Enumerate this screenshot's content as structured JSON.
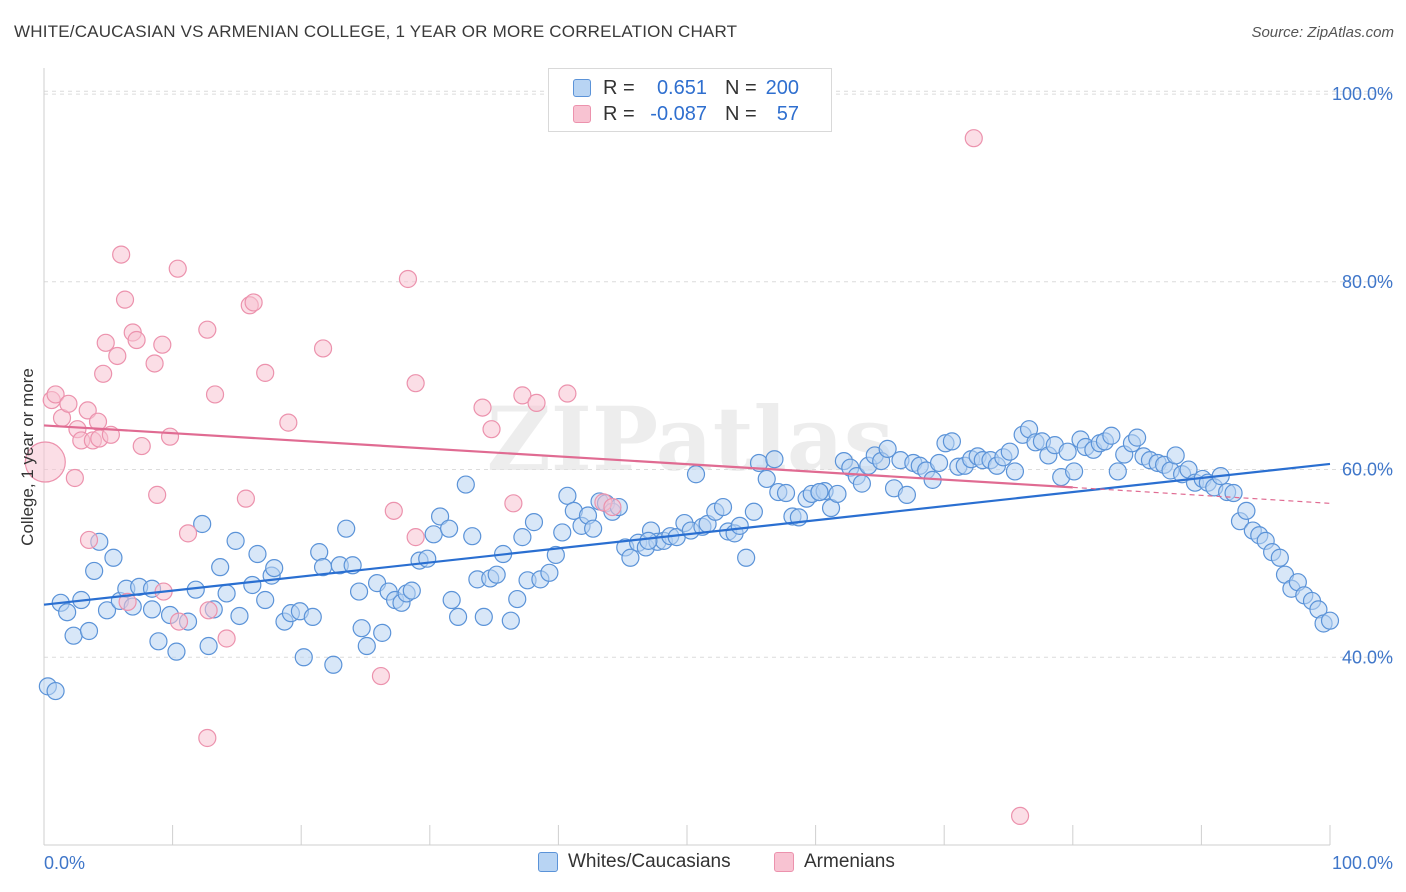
{
  "title": "WHITE/CAUCASIAN VS ARMENIAN COLLEGE, 1 YEAR OR MORE CORRELATION CHART",
  "source": "Source: ZipAtlas.com",
  "watermark": "ZIPatlas",
  "legend": {
    "rows": [
      {
        "r_label": "R =",
        "r_value": "0.651",
        "n_label": "N =",
        "n_value": "200"
      },
      {
        "r_label": "R =",
        "r_value": "-0.087",
        "n_label": "N =",
        "n_value": "57"
      }
    ]
  },
  "bottom_legend": [
    "Whites/Caucasians",
    "Armenians"
  ],
  "colors": {
    "blue_fill": "#b8d4f3",
    "blue_stroke": "#5b93d8",
    "blue_line": "#2a6fd1",
    "pink_fill": "#f8c3d2",
    "pink_stroke": "#ec92ad",
    "pink_line": "#e06b92",
    "axis_text": "#3f76c9",
    "grid": "#dcdcdc"
  },
  "chart_data": {
    "type": "scatter",
    "xlabel": "",
    "ylabel": "College, 1 year or more",
    "xlim": [
      0,
      100
    ],
    "ylim": [
      20,
      101.5
    ],
    "x_tick_labels": [
      "0.0%",
      "100.0%"
    ],
    "y_ticks": [
      40,
      60,
      80,
      100
    ],
    "y_tick_labels": [
      "40.0%",
      "60.0%",
      "80.0%",
      "100.0%"
    ],
    "grid": "horizontal dashed",
    "series": [
      {
        "name": "Whites/Caucasians",
        "trend": {
          "x": [
            0,
            100
          ],
          "y": [
            45.6,
            60.6
          ]
        },
        "points": [
          [
            0.3,
            36.9
          ],
          [
            0.9,
            36.4
          ],
          [
            1.3,
            45.8
          ],
          [
            1.8,
            44.8
          ],
          [
            2.3,
            42.3
          ],
          [
            2.9,
            46.1
          ],
          [
            3.5,
            42.8
          ],
          [
            3.9,
            49.2
          ],
          [
            4.3,
            52.3
          ],
          [
            4.9,
            45.0
          ],
          [
            5.4,
            50.6
          ],
          [
            5.9,
            46.0
          ],
          [
            6.4,
            47.3
          ],
          [
            6.9,
            45.4
          ],
          [
            7.4,
            47.5
          ],
          [
            8.4,
            47.3
          ],
          [
            8.4,
            45.1
          ],
          [
            8.9,
            41.7
          ],
          [
            9.8,
            44.5
          ],
          [
            10.3,
            40.6
          ],
          [
            11.2,
            43.8
          ],
          [
            11.8,
            47.2
          ],
          [
            12.3,
            54.2
          ],
          [
            12.8,
            41.2
          ],
          [
            13.2,
            45.1
          ],
          [
            13.7,
            49.6
          ],
          [
            14.2,
            46.8
          ],
          [
            14.9,
            52.4
          ],
          [
            15.2,
            44.4
          ],
          [
            16.2,
            47.7
          ],
          [
            16.6,
            51.0
          ],
          [
            17.2,
            46.1
          ],
          [
            17.7,
            48.7
          ],
          [
            17.9,
            49.5
          ],
          [
            18.7,
            43.8
          ],
          [
            19.2,
            44.7
          ],
          [
            19.9,
            44.9
          ],
          [
            20.2,
            40.0
          ],
          [
            20.9,
            44.3
          ],
          [
            21.4,
            51.2
          ],
          [
            21.7,
            49.6
          ],
          [
            22.5,
            39.2
          ],
          [
            23.0,
            49.8
          ],
          [
            23.5,
            53.7
          ],
          [
            24.0,
            49.8
          ],
          [
            24.5,
            47.0
          ],
          [
            24.7,
            43.1
          ],
          [
            25.1,
            41.2
          ],
          [
            25.9,
            47.9
          ],
          [
            26.3,
            42.6
          ],
          [
            26.8,
            47.0
          ],
          [
            27.3,
            46.1
          ],
          [
            27.8,
            45.8
          ],
          [
            28.2,
            46.8
          ],
          [
            28.6,
            47.1
          ],
          [
            29.2,
            50.3
          ],
          [
            29.8,
            50.5
          ],
          [
            30.3,
            53.1
          ],
          [
            30.8,
            55.0
          ],
          [
            31.5,
            53.7
          ],
          [
            31.7,
            46.1
          ],
          [
            32.2,
            44.3
          ],
          [
            32.8,
            58.4
          ],
          [
            33.3,
            52.9
          ],
          [
            33.7,
            48.3
          ],
          [
            34.2,
            44.3
          ],
          [
            34.7,
            48.4
          ],
          [
            35.2,
            48.8
          ],
          [
            35.7,
            51.0
          ],
          [
            36.3,
            43.9
          ],
          [
            36.8,
            46.2
          ],
          [
            37.2,
            52.8
          ],
          [
            37.6,
            48.2
          ],
          [
            38.1,
            54.4
          ],
          [
            38.6,
            48.3
          ],
          [
            39.3,
            49.0
          ],
          [
            39.8,
            50.9
          ],
          [
            40.3,
            53.3
          ],
          [
            40.7,
            57.2
          ],
          [
            41.2,
            55.6
          ],
          [
            41.8,
            54.0
          ],
          [
            42.3,
            55.1
          ],
          [
            42.7,
            53.7
          ],
          [
            43.2,
            56.6
          ],
          [
            43.7,
            56.4
          ],
          [
            44.2,
            55.5
          ],
          [
            44.7,
            56.0
          ],
          [
            45.2,
            51.7
          ],
          [
            45.6,
            50.6
          ],
          [
            46.2,
            52.2
          ],
          [
            46.8,
            51.7
          ],
          [
            47.2,
            53.5
          ],
          [
            47.7,
            52.3
          ],
          [
            48.2,
            52.4
          ],
          [
            48.7,
            52.9
          ],
          [
            49.2,
            52.8
          ],
          [
            49.8,
            54.3
          ],
          [
            50.3,
            53.5
          ],
          [
            50.7,
            59.5
          ],
          [
            51.2,
            53.9
          ],
          [
            51.6,
            54.2
          ],
          [
            52.2,
            55.5
          ],
          [
            52.8,
            56.0
          ],
          [
            53.2,
            53.4
          ],
          [
            53.7,
            53.2
          ],
          [
            54.1,
            54.0
          ],
          [
            54.6,
            50.6
          ],
          [
            55.2,
            55.5
          ],
          [
            55.6,
            60.7
          ],
          [
            56.2,
            59.0
          ],
          [
            56.8,
            61.1
          ],
          [
            57.1,
            57.6
          ],
          [
            57.7,
            57.5
          ],
          [
            58.2,
            55.0
          ],
          [
            58.7,
            54.9
          ],
          [
            59.3,
            56.9
          ],
          [
            59.7,
            57.4
          ],
          [
            60.3,
            57.6
          ],
          [
            60.7,
            57.7
          ],
          [
            61.2,
            55.9
          ],
          [
            61.7,
            57.4
          ],
          [
            62.2,
            60.9
          ],
          [
            62.7,
            60.2
          ],
          [
            63.2,
            59.3
          ],
          [
            63.6,
            58.5
          ],
          [
            64.1,
            60.4
          ],
          [
            64.6,
            61.5
          ],
          [
            65.1,
            60.9
          ],
          [
            65.6,
            62.2
          ],
          [
            66.1,
            58.0
          ],
          [
            66.6,
            61.0
          ],
          [
            67.1,
            57.3
          ],
          [
            67.6,
            60.7
          ],
          [
            68.1,
            60.4
          ],
          [
            68.6,
            59.9
          ],
          [
            69.1,
            58.9
          ],
          [
            69.6,
            60.7
          ],
          [
            70.1,
            62.8
          ],
          [
            70.6,
            63.0
          ],
          [
            71.1,
            60.3
          ],
          [
            71.6,
            60.4
          ],
          [
            72.1,
            61.1
          ],
          [
            72.6,
            61.4
          ],
          [
            73.0,
            61.0
          ],
          [
            73.6,
            61.0
          ],
          [
            74.1,
            60.4
          ],
          [
            74.6,
            61.3
          ],
          [
            75.1,
            61.9
          ],
          [
            75.5,
            59.8
          ],
          [
            76.1,
            63.7
          ],
          [
            76.6,
            64.3
          ],
          [
            77.1,
            62.9
          ],
          [
            77.6,
            63.0
          ],
          [
            78.1,
            61.5
          ],
          [
            78.6,
            62.6
          ],
          [
            79.1,
            59.2
          ],
          [
            79.6,
            61.9
          ],
          [
            80.1,
            59.8
          ],
          [
            80.6,
            63.2
          ],
          [
            81.0,
            62.4
          ],
          [
            81.6,
            62.1
          ],
          [
            82.1,
            62.8
          ],
          [
            82.5,
            63.0
          ],
          [
            83.0,
            63.6
          ],
          [
            83.5,
            59.8
          ],
          [
            84.0,
            61.6
          ],
          [
            84.6,
            62.8
          ],
          [
            85.0,
            63.4
          ],
          [
            85.5,
            61.4
          ],
          [
            86.0,
            61.0
          ],
          [
            86.6,
            60.7
          ],
          [
            87.1,
            60.5
          ],
          [
            87.6,
            59.9
          ],
          [
            88.0,
            61.5
          ],
          [
            88.5,
            59.5
          ],
          [
            89.0,
            60.0
          ],
          [
            89.5,
            58.6
          ],
          [
            90.1,
            59.0
          ],
          [
            90.5,
            58.6
          ],
          [
            91.0,
            58.1
          ],
          [
            91.5,
            59.3
          ],
          [
            92.0,
            57.6
          ],
          [
            92.5,
            57.5
          ],
          [
            93.0,
            54.5
          ],
          [
            93.5,
            55.6
          ],
          [
            94.0,
            53.5
          ],
          [
            94.5,
            53.0
          ],
          [
            95.0,
            52.4
          ],
          [
            95.5,
            51.2
          ],
          [
            96.1,
            50.6
          ],
          [
            96.5,
            48.8
          ],
          [
            97.0,
            47.3
          ],
          [
            97.5,
            48.0
          ],
          [
            98.0,
            46.6
          ],
          [
            98.6,
            46.0
          ],
          [
            99.1,
            45.1
          ],
          [
            99.5,
            43.6
          ],
          [
            100.0,
            43.9
          ],
          [
            47.0,
            52.4
          ],
          [
            60.3,
            57.6
          ]
        ]
      },
      {
        "name": "Armenians",
        "trend": {
          "x": [
            0,
            80
          ],
          "y": [
            64.7,
            58.1
          ]
        },
        "trend_extension": {
          "x": [
            80,
            100
          ],
          "y": [
            58.1,
            56.4
          ]
        },
        "points": [
          [
            0.1,
            60.8
          ],
          [
            0.6,
            67.4
          ],
          [
            0.9,
            68.0
          ],
          [
            1.4,
            65.5
          ],
          [
            1.9,
            67.0
          ],
          [
            2.4,
            59.1
          ],
          [
            2.6,
            64.3
          ],
          [
            2.9,
            63.1
          ],
          [
            3.4,
            66.3
          ],
          [
            3.5,
            52.5
          ],
          [
            3.8,
            63.1
          ],
          [
            4.2,
            65.1
          ],
          [
            4.3,
            63.3
          ],
          [
            4.6,
            70.2
          ],
          [
            4.8,
            73.5
          ],
          [
            5.2,
            63.7
          ],
          [
            5.7,
            72.1
          ],
          [
            6.0,
            82.9
          ],
          [
            6.3,
            78.1
          ],
          [
            6.5,
            45.9
          ],
          [
            6.9,
            74.6
          ],
          [
            7.2,
            73.8
          ],
          [
            7.6,
            62.5
          ],
          [
            8.6,
            71.3
          ],
          [
            8.8,
            57.3
          ],
          [
            9.2,
            73.3
          ],
          [
            9.3,
            47.0
          ],
          [
            9.8,
            63.5
          ],
          [
            10.4,
            81.4
          ],
          [
            10.5,
            43.8
          ],
          [
            11.2,
            53.2
          ],
          [
            12.7,
            74.9
          ],
          [
            12.8,
            45.0
          ],
          [
            13.3,
            68.0
          ],
          [
            14.2,
            42.0
          ],
          [
            12.7,
            31.4
          ],
          [
            15.7,
            56.9
          ],
          [
            16.0,
            77.5
          ],
          [
            16.3,
            77.8
          ],
          [
            17.2,
            70.3
          ],
          [
            19.0,
            65.0
          ],
          [
            21.7,
            72.9
          ],
          [
            26.2,
            38.0
          ],
          [
            27.2,
            55.6
          ],
          [
            28.3,
            80.3
          ],
          [
            28.9,
            52.8
          ],
          [
            28.9,
            69.2
          ],
          [
            34.1,
            66.6
          ],
          [
            34.8,
            64.3
          ],
          [
            36.5,
            56.4
          ],
          [
            37.2,
            67.9
          ],
          [
            38.3,
            67.1
          ],
          [
            40.7,
            68.1
          ],
          [
            43.5,
            56.5
          ],
          [
            44.2,
            56.0
          ],
          [
            72.3,
            95.3
          ],
          [
            75.9,
            23.1
          ]
        ]
      }
    ]
  }
}
